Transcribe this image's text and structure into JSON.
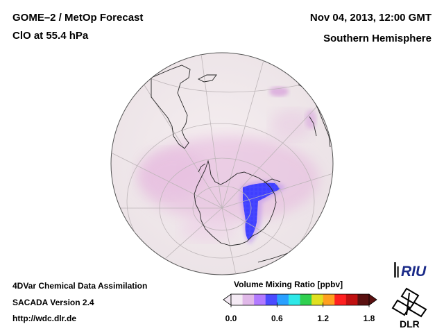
{
  "header": {
    "product": "GOME–2 / MetOp Forecast",
    "species": "ClO at 55.4 hPa",
    "datetime": "Nov 04, 2013, 12:00 GMT",
    "region": "Southern Hemisphere"
  },
  "footer": {
    "line1": "4DVar Chemical Data Assimilation",
    "line2": "SACADA Version 2.4",
    "url": "http://wdc.dlr.de"
  },
  "colorbar": {
    "title": "Volume Mixing Ratio [ppbv]",
    "ticks": [
      "0.0",
      "0.6",
      "1.2",
      "1.8"
    ],
    "tick_values": [
      0.0,
      0.6,
      1.2,
      1.8
    ],
    "range": [
      0.0,
      1.8
    ],
    "colors": [
      "#f4eaf4",
      "#e0b8e8",
      "#b27aff",
      "#4b4bff",
      "#2aa0ff",
      "#2ee8e8",
      "#30d050",
      "#e0e020",
      "#ffa020",
      "#ff2020",
      "#c01010",
      "#5a1010"
    ]
  },
  "logos": {
    "riu": "RIU",
    "dlr": "DLR"
  },
  "map": {
    "projection": "orthographic",
    "hemisphere": "south",
    "ocean_color": "#f1e7ea",
    "land_outline_color": "#222222",
    "grid_color": "#bdb5b8"
  }
}
